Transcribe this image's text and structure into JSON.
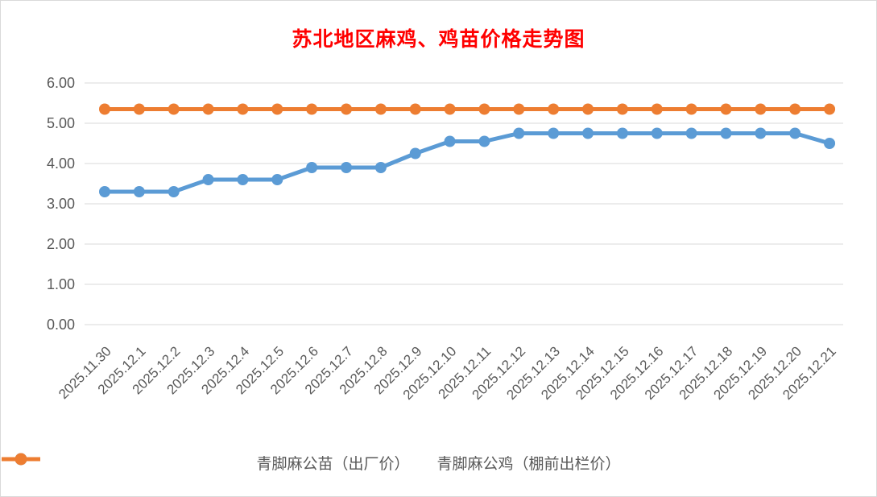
{
  "window": {
    "border_color": "#d9d9d9",
    "background": "#ffffff"
  },
  "chart_data": {
    "type": "line",
    "title": "苏北地区麻鸡、鸡苗价格走势图",
    "title_color": "#ff0000",
    "xlabel": "",
    "ylabel": "",
    "ylim": [
      0,
      6
    ],
    "ytick_step": 1,
    "ytick_labels": [
      "0.00",
      "1.00",
      "2.00",
      "3.00",
      "4.00",
      "5.00",
      "6.00"
    ],
    "grid": true,
    "gridline_color": "#d9d9d9",
    "axis_text_color": "#595959",
    "legend_position": "bottom",
    "categories": [
      "2025.11.30",
      "2025.12.1",
      "2025.12.2",
      "2025.12.3",
      "2025.12.4",
      "2025.12.5",
      "2025.12.6",
      "2025.12.7",
      "2025.12.8",
      "2025.12.9",
      "2025.12.10",
      "2025.12.11",
      "2025.12.12",
      "2025.12.13",
      "2025.12.14",
      "2025.12.15",
      "2025.12.16",
      "2025.12.17",
      "2025.12.18",
      "2025.12.19",
      "2025.12.20",
      "2025.12.21"
    ],
    "series": [
      {
        "name": "青脚麻公苗（出厂价）",
        "color": "#5b9bd5",
        "marker": "circle",
        "values": [
          3.3,
          3.3,
          3.3,
          3.6,
          3.6,
          3.6,
          3.9,
          3.9,
          3.9,
          4.25,
          4.55,
          4.55,
          4.75,
          4.75,
          4.75,
          4.75,
          4.75,
          4.75,
          4.75,
          4.75,
          4.75,
          4.5
        ]
      },
      {
        "name": "青脚麻公鸡（棚前出栏价）",
        "color": "#ed7d31",
        "marker": "circle",
        "values": [
          5.35,
          5.35,
          5.35,
          5.35,
          5.35,
          5.35,
          5.35,
          5.35,
          5.35,
          5.35,
          5.35,
          5.35,
          5.35,
          5.35,
          5.35,
          5.35,
          5.35,
          5.35,
          5.35,
          5.35,
          5.35,
          5.35
        ]
      }
    ]
  }
}
